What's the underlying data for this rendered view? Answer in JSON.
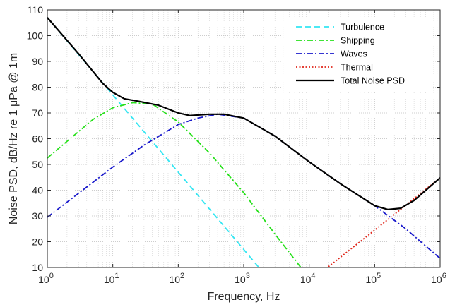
{
  "chart_data": {
    "type": "line",
    "xlabel": "Frequency, Hz",
    "ylabel": "Noise PSD, dB/Hz re 1  μPa @ 1m",
    "x_scale": "log",
    "xlim": [
      1,
      1000000
    ],
    "ylim": [
      10,
      110
    ],
    "grid": true,
    "legend_position": "top-right",
    "x_ticks": [
      {
        "value": 1,
        "base": "10",
        "exp": "0"
      },
      {
        "value": 10,
        "base": "10",
        "exp": "1"
      },
      {
        "value": 100,
        "base": "10",
        "exp": "2"
      },
      {
        "value": 1000,
        "base": "10",
        "exp": "3"
      },
      {
        "value": 10000,
        "base": "10",
        "exp": "4"
      },
      {
        "value": 100000,
        "base": "10",
        "exp": "5"
      },
      {
        "value": 1000000,
        "base": "10",
        "exp": "6"
      }
    ],
    "y_ticks": [
      "10",
      "20",
      "30",
      "40",
      "50",
      "60",
      "70",
      "80",
      "90",
      "100",
      "110"
    ],
    "series": [
      {
        "name": "Turbulence",
        "color": "#33e6f2",
        "dash": "dashed",
        "points": [
          [
            1,
            107
          ],
          [
            10,
            77
          ],
          [
            100,
            47
          ],
          [
            1000,
            17
          ],
          [
            1800,
            9.3
          ]
        ]
      },
      {
        "name": "Shipping",
        "color": "#26e01a",
        "dash": "dash-dot",
        "points": [
          [
            1,
            52.5
          ],
          [
            2,
            59
          ],
          [
            5,
            67.5
          ],
          [
            10,
            72
          ],
          [
            20,
            74
          ],
          [
            40,
            73.5
          ],
          [
            100,
            66.5
          ],
          [
            300,
            54.5
          ],
          [
            1000,
            39
          ],
          [
            3000,
            23
          ],
          [
            8000,
            9
          ]
        ]
      },
      {
        "name": "Waves",
        "color": "#1a1acc",
        "dash": "dash-dot",
        "points": [
          [
            1,
            29.5
          ],
          [
            10,
            49
          ],
          [
            30,
            57.5
          ],
          [
            100,
            65.5
          ],
          [
            200,
            68
          ],
          [
            400,
            69.5
          ],
          [
            1000,
            68
          ],
          [
            3000,
            61
          ],
          [
            10000,
            51
          ],
          [
            30000,
            42.5
          ],
          [
            100000,
            34
          ],
          [
            300000,
            25
          ],
          [
            1000000,
            13.5
          ]
        ]
      },
      {
        "name": "Thermal",
        "color": "#e0261a",
        "dash": "dotted",
        "points": [
          [
            18000,
            9.5
          ],
          [
            100000,
            24.5
          ],
          [
            1000000,
            44.8
          ]
        ]
      },
      {
        "name": "Total Noise PSD",
        "color": "#000000",
        "dash": "solid",
        "points": [
          [
            1,
            107
          ],
          [
            3,
            93
          ],
          [
            7,
            81.5
          ],
          [
            10,
            78
          ],
          [
            15,
            75.5
          ],
          [
            25,
            74.5
          ],
          [
            50,
            73
          ],
          [
            100,
            70
          ],
          [
            150,
            69
          ],
          [
            300,
            69.5
          ],
          [
            500,
            69.5
          ],
          [
            1000,
            68
          ],
          [
            3000,
            61
          ],
          [
            10000,
            51
          ],
          [
            30000,
            42.5
          ],
          [
            100000,
            34
          ],
          [
            160000,
            32.5
          ],
          [
            250000,
            33
          ],
          [
            400000,
            36
          ],
          [
            1000000,
            44.8
          ]
        ]
      }
    ]
  }
}
